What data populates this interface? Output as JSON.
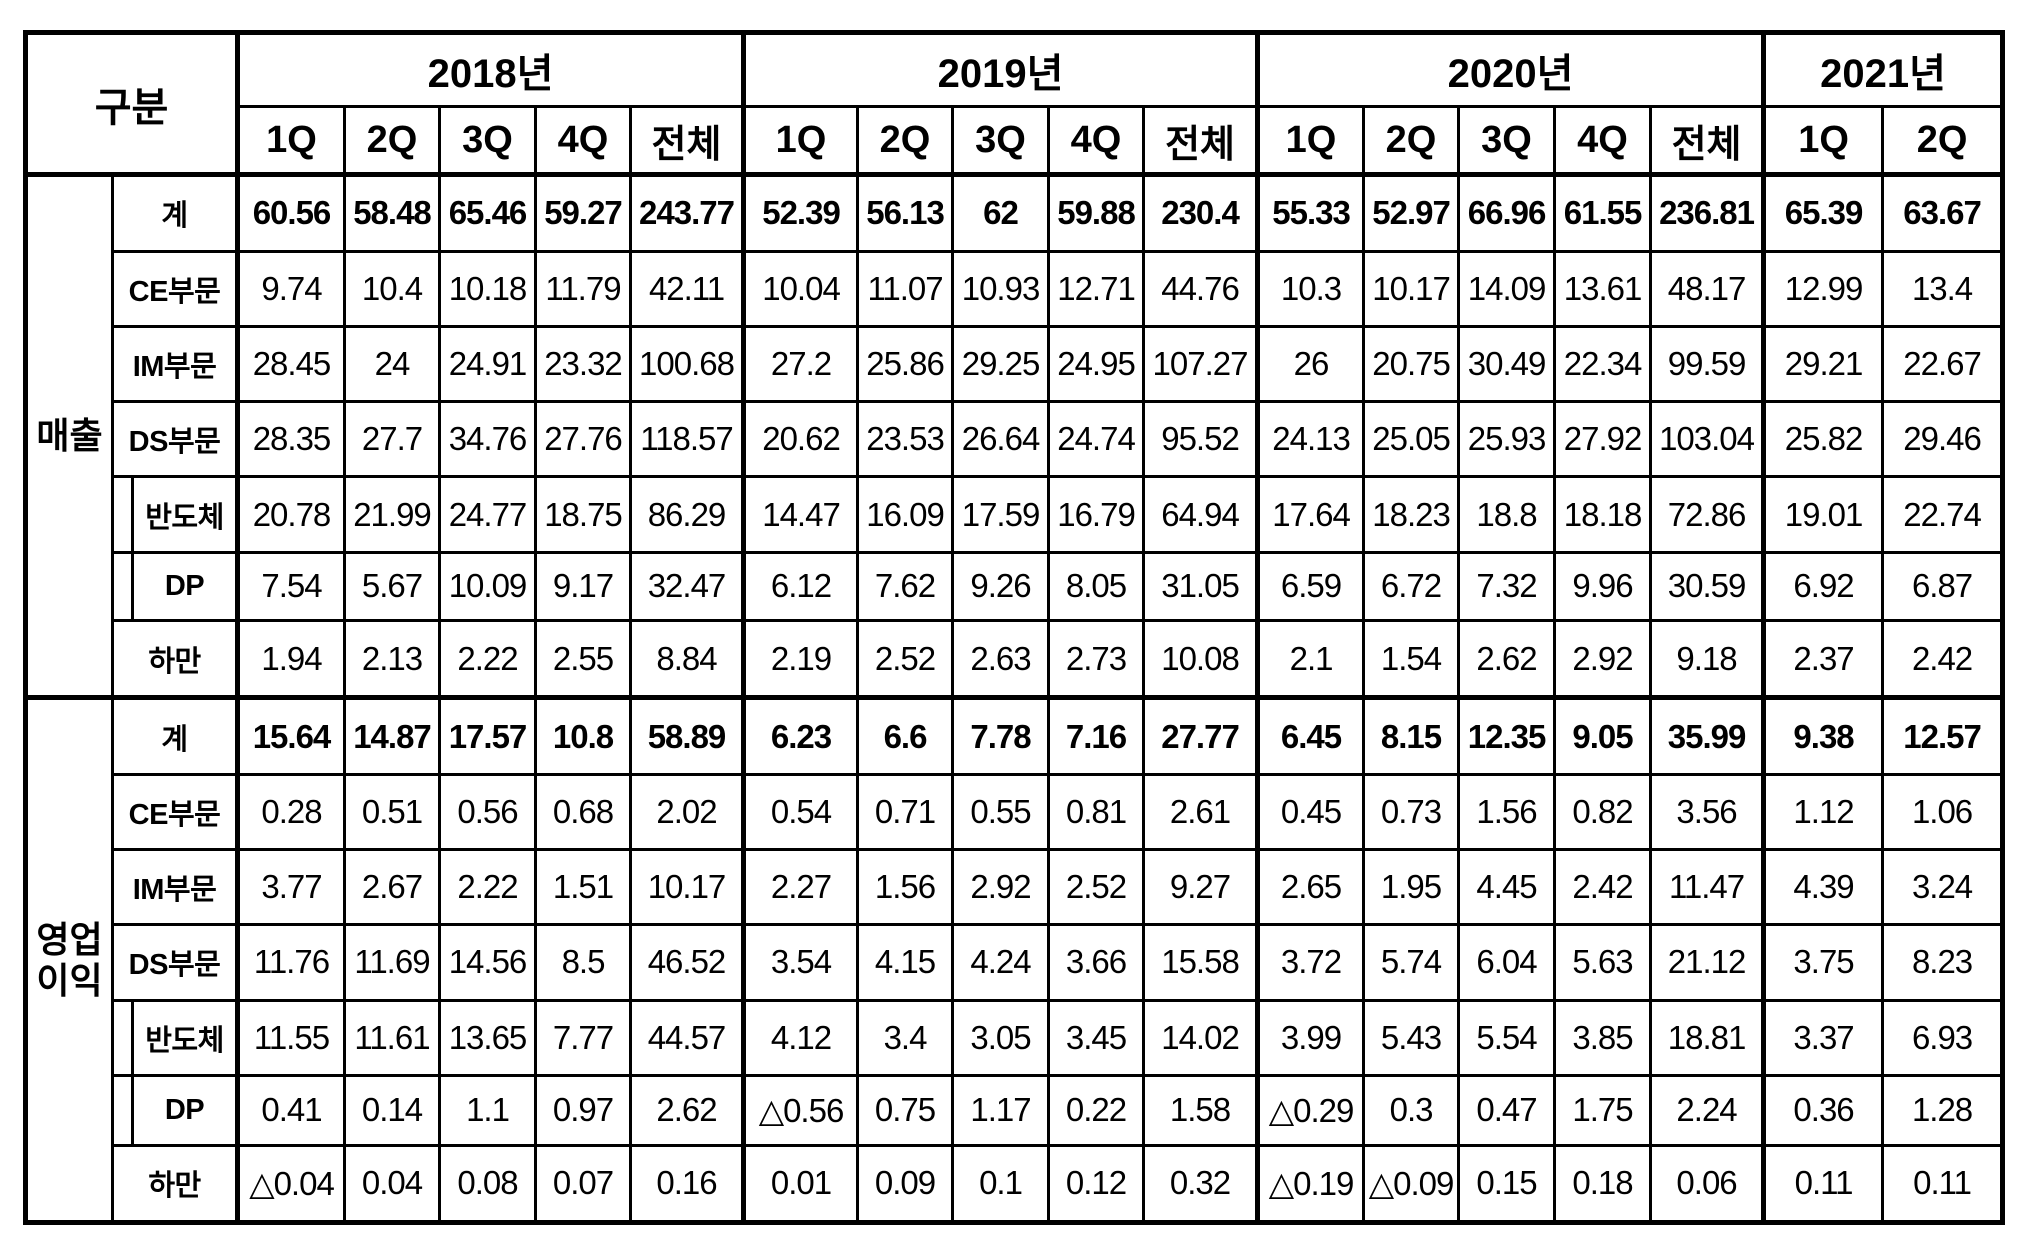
{
  "chart_data": {
    "type": "table",
    "header": {
      "gubun": "구분",
      "years": [
        {
          "label": "2018년",
          "quarters": [
            "1Q",
            "2Q",
            "3Q",
            "4Q",
            "전체"
          ]
        },
        {
          "label": "2019년",
          "quarters": [
            "1Q",
            "2Q",
            "3Q",
            "4Q",
            "전체"
          ]
        },
        {
          "label": "2020년",
          "quarters": [
            "1Q",
            "2Q",
            "3Q",
            "4Q",
            "전체"
          ]
        },
        {
          "label": "2021년",
          "quarters": [
            "1Q",
            "2Q"
          ]
        }
      ]
    },
    "negative_marker": "△",
    "sections": [
      {
        "name": "매출",
        "rows": [
          {
            "label": "계",
            "indent": false,
            "bold": true,
            "values": [
              "60.56",
              "58.48",
              "65.46",
              "59.27",
              "243.77",
              "52.39",
              "56.13",
              "62",
              "59.88",
              "230.4",
              "55.33",
              "52.97",
              "66.96",
              "61.55",
              "236.81",
              "65.39",
              "63.67"
            ]
          },
          {
            "label": "CE부문",
            "indent": false,
            "bold": false,
            "values": [
              "9.74",
              "10.4",
              "10.18",
              "11.79",
              "42.11",
              "10.04",
              "11.07",
              "10.93",
              "12.71",
              "44.76",
              "10.3",
              "10.17",
              "14.09",
              "13.61",
              "48.17",
              "12.99",
              "13.4"
            ]
          },
          {
            "label": "IM부문",
            "indent": false,
            "bold": false,
            "values": [
              "28.45",
              "24",
              "24.91",
              "23.32",
              "100.68",
              "27.2",
              "25.86",
              "29.25",
              "24.95",
              "107.27",
              "26",
              "20.75",
              "30.49",
              "22.34",
              "99.59",
              "29.21",
              "22.67"
            ]
          },
          {
            "label": "DS부문",
            "indent": false,
            "bold": false,
            "values": [
              "28.35",
              "27.7",
              "34.76",
              "27.76",
              "118.57",
              "20.62",
              "23.53",
              "26.64",
              "24.74",
              "95.52",
              "24.13",
              "25.05",
              "25.93",
              "27.92",
              "103.04",
              "25.82",
              "29.46"
            ]
          },
          {
            "label": "반도체",
            "indent": true,
            "bold": false,
            "values": [
              "20.78",
              "21.99",
              "24.77",
              "18.75",
              "86.29",
              "14.47",
              "16.09",
              "17.59",
              "16.79",
              "64.94",
              "17.64",
              "18.23",
              "18.8",
              "18.18",
              "72.86",
              "19.01",
              "22.74"
            ]
          },
          {
            "label": "DP",
            "indent": true,
            "bold": false,
            "values": [
              "7.54",
              "5.67",
              "10.09",
              "9.17",
              "32.47",
              "6.12",
              "7.62",
              "9.26",
              "8.05",
              "31.05",
              "6.59",
              "6.72",
              "7.32",
              "9.96",
              "30.59",
              "6.92",
              "6.87"
            ]
          },
          {
            "label": "하만",
            "indent": false,
            "bold": false,
            "values": [
              "1.94",
              "2.13",
              "2.22",
              "2.55",
              "8.84",
              "2.19",
              "2.52",
              "2.63",
              "2.73",
              "10.08",
              "2.1",
              "1.54",
              "2.62",
              "2.92",
              "9.18",
              "2.37",
              "2.42"
            ]
          }
        ]
      },
      {
        "name": "영업이익",
        "rows": [
          {
            "label": "계",
            "indent": false,
            "bold": true,
            "values": [
              "15.64",
              "14.87",
              "17.57",
              "10.8",
              "58.89",
              "6.23",
              "6.6",
              "7.78",
              "7.16",
              "27.77",
              "6.45",
              "8.15",
              "12.35",
              "9.05",
              "35.99",
              "9.38",
              "12.57"
            ]
          },
          {
            "label": "CE부문",
            "indent": false,
            "bold": false,
            "values": [
              "0.28",
              "0.51",
              "0.56",
              "0.68",
              "2.02",
              "0.54",
              "0.71",
              "0.55",
              "0.81",
              "2.61",
              "0.45",
              "0.73",
              "1.56",
              "0.82",
              "3.56",
              "1.12",
              "1.06"
            ]
          },
          {
            "label": "IM부문",
            "indent": false,
            "bold": false,
            "values": [
              "3.77",
              "2.67",
              "2.22",
              "1.51",
              "10.17",
              "2.27",
              "1.56",
              "2.92",
              "2.52",
              "9.27",
              "2.65",
              "1.95",
              "4.45",
              "2.42",
              "11.47",
              "4.39",
              "3.24"
            ]
          },
          {
            "label": "DS부문",
            "indent": false,
            "bold": false,
            "values": [
              "11.76",
              "11.69",
              "14.56",
              "8.5",
              "46.52",
              "3.54",
              "4.15",
              "4.24",
              "3.66",
              "15.58",
              "3.72",
              "5.74",
              "6.04",
              "5.63",
              "21.12",
              "3.75",
              "8.23"
            ]
          },
          {
            "label": "반도체",
            "indent": true,
            "bold": false,
            "values": [
              "11.55",
              "11.61",
              "13.65",
              "7.77",
              "44.57",
              "4.12",
              "3.4",
              "3.05",
              "3.45",
              "14.02",
              "3.99",
              "5.43",
              "5.54",
              "3.85",
              "18.81",
              "3.37",
              "6.93"
            ]
          },
          {
            "label": "DP",
            "indent": true,
            "bold": false,
            "values": [
              "0.41",
              "0.14",
              "1.1",
              "0.97",
              "2.62",
              "△0.56",
              "0.75",
              "1.17",
              "0.22",
              "1.58",
              "△0.29",
              "0.3",
              "0.47",
              "1.75",
              "2.24",
              "0.36",
              "1.28"
            ]
          },
          {
            "label": "하만",
            "indent": false,
            "bold": false,
            "values": [
              "△0.04",
              "0.04",
              "0.08",
              "0.07",
              "0.16",
              "0.01",
              "0.09",
              "0.1",
              "0.12",
              "0.32",
              "△0.19",
              "△0.09",
              "0.15",
              "0.18",
              "0.06",
              "0.11",
              "0.11"
            ]
          }
        ]
      }
    ],
    "colors": {
      "border": "#000000",
      "text": "#000000",
      "background": "#ffffff"
    }
  }
}
